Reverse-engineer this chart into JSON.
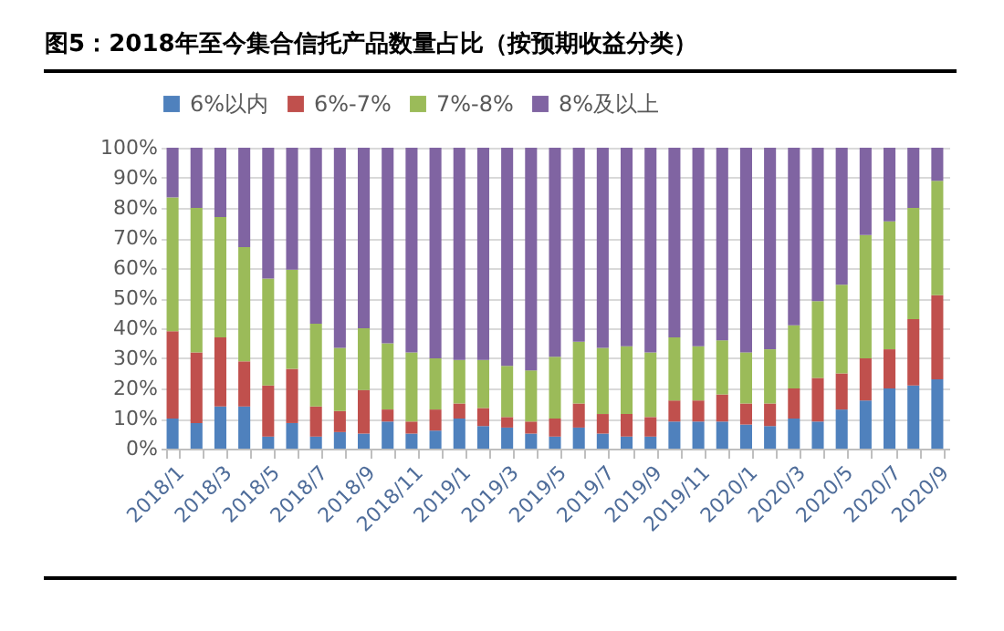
{
  "chart_data": {
    "type": "bar",
    "title": "图5：2018年至今集合信托产品数量占比（按预期收益分类）",
    "categories": [
      "2018/1",
      null,
      "2018/3",
      null,
      "2018/5",
      null,
      "2018/7",
      null,
      "2018/9",
      null,
      "2018/11",
      null,
      "2019/1",
      null,
      "2019/3",
      null,
      "2019/5",
      null,
      "2019/7",
      null,
      "2019/9",
      null,
      "2019/11",
      null,
      "2020/1",
      null,
      "2020/3",
      null,
      "2020/5",
      null,
      "2020/7",
      null,
      "2020/9"
    ],
    "stacked": true,
    "series": [
      {
        "name": "6%以内",
        "color": "#4f81bd",
        "values": [
          10,
          8.5,
          14,
          14,
          4,
          8.5,
          4,
          5.5,
          5,
          9,
          5,
          6,
          10,
          7.5,
          7,
          5,
          4,
          7,
          5,
          4,
          4,
          9,
          9,
          9,
          8,
          7.5,
          10,
          9,
          13,
          16,
          20,
          21,
          23
        ]
      },
      {
        "name": "6%-7%",
        "color": "#c0504d",
        "values": [
          29,
          23.5,
          23,
          15,
          17,
          18,
          10,
          7,
          14.5,
          4,
          4,
          7,
          5,
          6,
          3.5,
          4,
          6,
          8,
          6.5,
          7.5,
          6.5,
          7,
          7,
          9,
          7,
          7.5,
          10,
          14.5,
          12,
          14,
          13,
          22,
          28
        ]
      },
      {
        "name": "7%-8%",
        "color": "#9bbb59",
        "values": [
          44.5,
          48,
          40,
          38,
          35.5,
          33,
          27.5,
          21,
          20.5,
          22,
          23,
          17,
          14.5,
          16,
          17,
          17,
          20.5,
          20.5,
          22,
          22.5,
          21.5,
          21,
          18,
          18,
          17,
          18,
          21,
          25.5,
          29.5,
          41,
          42.5,
          37,
          38
        ]
      },
      {
        "name": "8%及以上",
        "color": "#8064a2",
        "values": [
          16.5,
          20,
          23,
          33,
          43.5,
          40.5,
          58.5,
          66.5,
          60,
          65,
          68,
          70,
          70.5,
          70.5,
          72.5,
          74,
          69.5,
          64.5,
          66.5,
          66,
          68,
          63,
          66,
          64,
          68,
          67,
          59,
          51,
          45.5,
          29,
          24.5,
          20,
          11
        ]
      }
    ],
    "ylim": [
      0,
      100
    ],
    "yticks": [
      {
        "value": 0,
        "label": "0%"
      },
      {
        "value": 10,
        "label": "10%"
      },
      {
        "value": 20,
        "label": "20%"
      },
      {
        "value": 30,
        "label": "30%"
      },
      {
        "value": 40,
        "label": "40%"
      },
      {
        "value": 50,
        "label": "50%"
      },
      {
        "value": 60,
        "label": "60%"
      },
      {
        "value": 70,
        "label": "70%"
      },
      {
        "value": 80,
        "label": "80%"
      },
      {
        "value": 90,
        "label": "90%"
      },
      {
        "value": 100,
        "label": "100%"
      }
    ],
    "grid": "y",
    "legend": "top"
  }
}
